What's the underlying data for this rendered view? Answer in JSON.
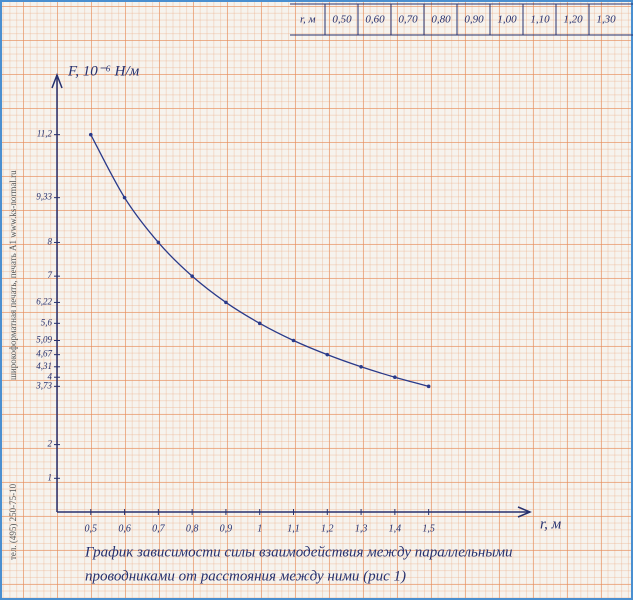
{
  "chart_data": {
    "type": "line",
    "y_label": "F, 10⁻⁶ Н/м",
    "x_label": "r, м",
    "x": [
      0.5,
      0.6,
      0.7,
      0.8,
      0.9,
      1.0,
      1.1,
      1.2,
      1.3,
      1.4,
      1.5
    ],
    "values": [
      11.2,
      9.33,
      8,
      7,
      6.22,
      5.6,
      5.09,
      4.67,
      4.31,
      4,
      3.73
    ],
    "color": "#2a3a8a",
    "xlim": [
      0.4,
      1.8
    ],
    "ylim": [
      0,
      13
    ],
    "xticks": [
      {
        "value": 0.5,
        "label": "0,5"
      },
      {
        "value": 0.6,
        "label": "0,6"
      },
      {
        "value": 0.7,
        "label": "0,7"
      },
      {
        "value": 0.8,
        "label": "0,8"
      },
      {
        "value": 0.9,
        "label": "0,9"
      },
      1,
      {
        "value": 1.1,
        "label": "1,1"
      },
      {
        "value": 1.2,
        "label": "1,2"
      },
      {
        "value": 1.3,
        "label": "1,3"
      },
      {
        "value": 1.4,
        "label": "1,4"
      },
      {
        "value": 1.5,
        "label": "1,5"
      }
    ],
    "yticks": [
      1,
      2,
      {
        "value": 3.73,
        "label": "3,73"
      },
      4,
      {
        "value": 4.31,
        "label": "4,31"
      },
      {
        "value": 4.67,
        "label": "4,67"
      },
      {
        "value": 5.09,
        "label": "5,09"
      },
      {
        "value": 5.6,
        "label": "5,6"
      },
      {
        "value": 6.22,
        "label": "6,22"
      },
      7,
      8,
      {
        "value": 9.33,
        "label": "9,33"
      },
      {
        "value": 11.2,
        "label": "11,2"
      }
    ],
    "caption": [
      "График зависимости силы взаимодействия между параллельными",
      "проводниками от расстояния между ними (рис 1)"
    ]
  },
  "header_table": {
    "label": "r, м",
    "cells": [
      "0,50",
      "0,60",
      "0,70",
      "0,80",
      "0,90",
      "1,00",
      "1,10",
      "1,20",
      "1,30"
    ]
  },
  "margin_text": [
    "широкоформатная печать, печать А1  www.ks-normal.ru",
    "тел. (495) 250-75-10"
  ]
}
